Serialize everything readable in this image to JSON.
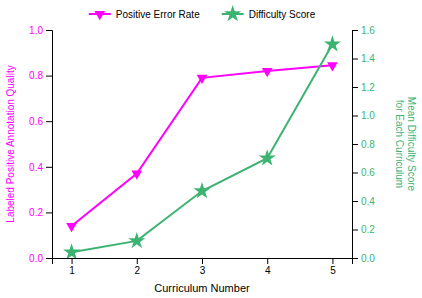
{
  "chart_data": {
    "type": "line",
    "x": [
      1,
      2,
      3,
      4,
      5
    ],
    "xlabel": "Curriculum Number",
    "ylabel": "Labeled Positive Annotation Quality",
    "y2label": "Mean Difficulty Score\nfor Each Curriculum",
    "xlim": [
      0.7,
      5.3
    ],
    "xticks": [
      1,
      2,
      3,
      4,
      5
    ],
    "ylim": [
      0.0,
      1.0
    ],
    "yticks": [
      {
        "value": 0.0,
        "label": "0.0"
      },
      0.2,
      0.4,
      0.6,
      0.8,
      {
        "value": 1.0,
        "label": "1.0"
      }
    ],
    "y2lim": [
      0.0,
      1.6
    ],
    "y2ticks": [
      {
        "value": 0.0,
        "label": "0.0"
      },
      0.2,
      0.4,
      0.6,
      0.8,
      {
        "value": 1.0,
        "label": "1.0"
      },
      1.2,
      1.4,
      1.6
    ],
    "grid": false,
    "legend": "top",
    "series": [
      {
        "name": "Positive Error Rate",
        "color": "#FF00FF",
        "marker": "triangle-down",
        "values": [
          0.14,
          0.37,
          0.79,
          0.82,
          0.845
        ]
      },
      {
        "name": "Difficulty Score",
        "color": "#3CB371",
        "marker": "star",
        "axis": "y2",
        "values": [
          0.04,
          0.12,
          0.47,
          0.7,
          1.5
        ]
      }
    ]
  }
}
